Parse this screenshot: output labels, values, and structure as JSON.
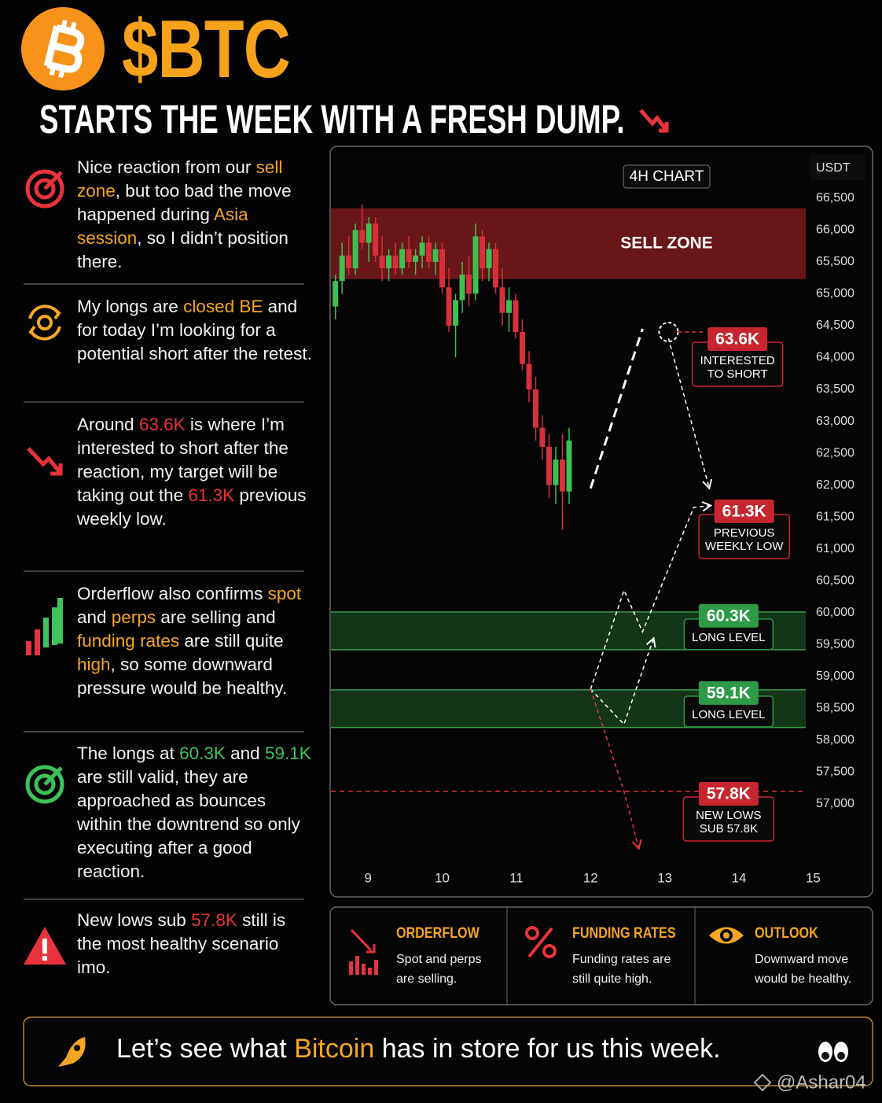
{
  "header": {
    "title": "$BTC",
    "subtitle": "STARTS THE WEEK WITH A FRESH DUMP."
  },
  "notes": [
    {
      "segments": [
        {
          "text": "Nice reaction from our "
        },
        {
          "text": "sell zone",
          "color": "#f5a623"
        },
        {
          "text": ", but too bad the move happened during "
        },
        {
          "text": "Asia session",
          "color": "#f5a623"
        },
        {
          "text": ", so I didn’t position there."
        }
      ]
    },
    {
      "segments": [
        {
          "text": "My longs are "
        },
        {
          "text": "closed BE",
          "color": "#f5a623"
        },
        {
          "text": " and for today I’m looking for a potential short after the retest."
        }
      ]
    },
    {
      "segments": [
        {
          "text": "Around "
        },
        {
          "text": "63.6K",
          "color": "#e8333c"
        },
        {
          "text": " is where I’m interested to short after the reaction, my target will be taking out the "
        },
        {
          "text": "61.3K",
          "color": "#e8333c"
        },
        {
          "text": " previous weekly low."
        }
      ]
    },
    {
      "segments": [
        {
          "text": "Orderflow also confirms "
        },
        {
          "text": "spot",
          "color": "#f5a623"
        },
        {
          "text": " and "
        },
        {
          "text": "perps",
          "color": "#f5a623"
        },
        {
          "text": " are selling and "
        },
        {
          "text": "funding rates",
          "color": "#f5a623"
        },
        {
          "text": " are still quite "
        },
        {
          "text": "high",
          "color": "#f5a623"
        },
        {
          "text": ", so some downward pressure would be healthy."
        }
      ]
    },
    {
      "segments": [
        {
          "text": "The longs at "
        },
        {
          "text": "60.3K",
          "color": "#3ec25a"
        },
        {
          "text": " and "
        },
        {
          "text": "59.1K",
          "color": "#3ec25a"
        },
        {
          "text": " are still valid, they are approached as bounces within the downtrend so only executing after a good reaction."
        }
      ]
    },
    {
      "segments": [
        {
          "text": "New lows sub "
        },
        {
          "text": "57.8K",
          "color": "#e8333c"
        },
        {
          "text": " still is the most healthy scenario imo."
        }
      ]
    }
  ],
  "chart_data": {
    "type": "candlestick",
    "title": "4H CHART",
    "y_axis_label": "USDT",
    "x": [
      8.56,
      8.65,
      8.74,
      8.83,
      8.92,
      9.01,
      9.1,
      9.19,
      9.28,
      9.37,
      9.46,
      9.55,
      9.64,
      9.73,
      9.82,
      9.91,
      10.0,
      10.09,
      10.18,
      10.27,
      10.36,
      10.45,
      10.54,
      10.63,
      10.72,
      10.81,
      10.9,
      10.99,
      11.08,
      11.17,
      11.26,
      11.35,
      11.44,
      11.53,
      11.62,
      11.71
    ],
    "open": [
      64800,
      65200,
      65600,
      65400,
      66000,
      65800,
      66100,
      65600,
      65400,
      65600,
      65400,
      65700,
      65500,
      65600,
      65800,
      65500,
      65700,
      65100,
      64500,
      64900,
      65300,
      65000,
      65900,
      65400,
      65700,
      65100,
      64700,
      64900,
      64400,
      63900,
      63500,
      62900,
      62600,
      62000,
      62400,
      61900
    ],
    "high": [
      65300,
      65800,
      65900,
      66100,
      66400,
      66200,
      66200,
      65900,
      65700,
      65800,
      65800,
      65900,
      65700,
      65900,
      65900,
      65800,
      65800,
      65400,
      65000,
      65500,
      65600,
      66100,
      66000,
      65800,
      65800,
      65400,
      65100,
      65000,
      64600,
      64100,
      63700,
      63100,
      62800,
      62600,
      62800,
      62900
    ],
    "low": [
      64600,
      65000,
      65300,
      65300,
      65700,
      65500,
      65500,
      65200,
      65200,
      65300,
      65300,
      65400,
      65300,
      65400,
      65400,
      65300,
      65000,
      64400,
      64000,
      64700,
      64800,
      64900,
      65200,
      65200,
      65000,
      64500,
      64400,
      64300,
      63800,
      63300,
      62700,
      62400,
      61800,
      61700,
      61300,
      61700
    ],
    "close": [
      65200,
      65600,
      65400,
      66000,
      65800,
      66100,
      65600,
      65400,
      65600,
      65400,
      65700,
      65500,
      65600,
      65800,
      65500,
      65700,
      65100,
      64500,
      64900,
      65300,
      65000,
      65900,
      65400,
      65700,
      65100,
      64700,
      64900,
      64400,
      63900,
      63500,
      62900,
      62600,
      62000,
      62400,
      61900,
      62700
    ],
    "up_color": "#3fbf4f",
    "down_color": "#d6303a",
    "xlim": [
      8.5,
      14.9
    ],
    "ylim": [
      56000,
      67250
    ],
    "xticks": [
      9,
      10,
      11,
      12,
      13,
      14,
      15
    ],
    "yticks": [
      {
        "value": 66500,
        "label": "66,500"
      },
      {
        "value": 66000,
        "label": "66,000"
      },
      {
        "value": 65500,
        "label": "65,500"
      },
      {
        "value": 65000,
        "label": "65,000"
      },
      {
        "value": 64500,
        "label": "64,500"
      },
      {
        "value": 64000,
        "label": "64,000"
      },
      {
        "value": 63500,
        "label": "63,500"
      },
      {
        "value": 63000,
        "label": "63,000"
      },
      {
        "value": 62500,
        "label": "62,500"
      },
      {
        "value": 62000,
        "label": "62,000"
      },
      {
        "value": 61500,
        "label": "61,500"
      },
      {
        "value": 61000,
        "label": "61,000"
      },
      {
        "value": 60500,
        "label": "60,500"
      },
      {
        "value": 60000,
        "label": "60,000"
      },
      {
        "value": 59500,
        "label": "59,500"
      },
      {
        "value": 59000,
        "label": "59,000"
      },
      {
        "value": 58500,
        "label": "58,500"
      },
      {
        "value": 58000,
        "label": "58,000"
      },
      {
        "value": 57500,
        "label": "57,500"
      },
      {
        "value": 57000,
        "label": "57,000"
      }
    ],
    "zones": [
      {
        "label": "SELL ZONE",
        "range": [
          65230,
          66340
        ],
        "color": "#7a1a1f"
      },
      {
        "range": [
          59420,
          60010
        ],
        "color": "#163f1c"
      },
      {
        "range": [
          58200,
          58790
        ],
        "color": "#163f1c"
      }
    ],
    "levels": [
      {
        "y": 57200,
        "color": "#e0333c"
      }
    ],
    "projections": [
      {
        "color": "#ffffff",
        "width": 3,
        "points": [
          [
            12.0,
            61950
          ],
          [
            12.7,
            64450
          ]
        ]
      },
      {
        "color": "#ffffff",
        "width": 1.5,
        "points": [
          [
            13.05,
            64300
          ],
          [
            13.6,
            61950
          ]
        ]
      },
      {
        "color": "#ffffff",
        "width": 1.5,
        "points": [
          [
            12.0,
            58800
          ],
          [
            12.45,
            60350
          ],
          [
            12.7,
            59700
          ],
          [
            13.39,
            61650
          ],
          [
            13.62,
            61680
          ]
        ]
      },
      {
        "color": "#ffffff",
        "width": 1.5,
        "points": [
          [
            12.0,
            58800
          ],
          [
            12.45,
            58250
          ],
          [
            12.85,
            59600
          ]
        ]
      },
      {
        "color": "#ffffff",
        "width": 1.5,
        "points": [
          [
            12.0,
            58800
          ],
          [
            12.45,
            57200
          ],
          [
            12.65,
            56300
          ]
        ]
      }
    ],
    "marker": [
      13.05,
      64400
    ],
    "annotations": [
      {
        "price_label": "63.6K",
        "caption": [
          "INTERESTED",
          "TO SHORT"
        ],
        "x": 13.98,
        "y": 64290,
        "color": "#c8262e"
      },
      {
        "price_label": "61.3K",
        "caption": [
          "PREVIOUS",
          "WEEKLY LOW"
        ],
        "x": 14.07,
        "y": 61590,
        "color": "#c8262e"
      },
      {
        "price_label": "60.3K",
        "caption": [
          "LONG LEVEL"
        ],
        "x": 13.86,
        "y": 59950,
        "color": "#2e9a45"
      },
      {
        "price_label": "59.1K",
        "caption": [
          "LONG LEVEL"
        ],
        "x": 13.86,
        "y": 58740,
        "color": "#2e9a45"
      },
      {
        "price_label": "57.8K",
        "caption": [
          "NEW LOWS",
          "SUB 57.8K"
        ],
        "x": 13.86,
        "y": 57160,
        "color": "#c8262e"
      }
    ]
  },
  "cards": [
    {
      "title": "ORDERFLOW",
      "text": "Spot and perps are selling."
    },
    {
      "title": "FUNDING RATES",
      "text": "Funding rates are still quite high."
    },
    {
      "title": "OUTLOOK",
      "text": "Downward move would be healthy."
    }
  ],
  "footer": {
    "segments": [
      {
        "text": "Let’s see what "
      },
      {
        "text": "Bitcoin",
        "color": "#f5a623"
      },
      {
        "text": " has in store for us this week."
      }
    ]
  },
  "watermark": "@Ashar04"
}
